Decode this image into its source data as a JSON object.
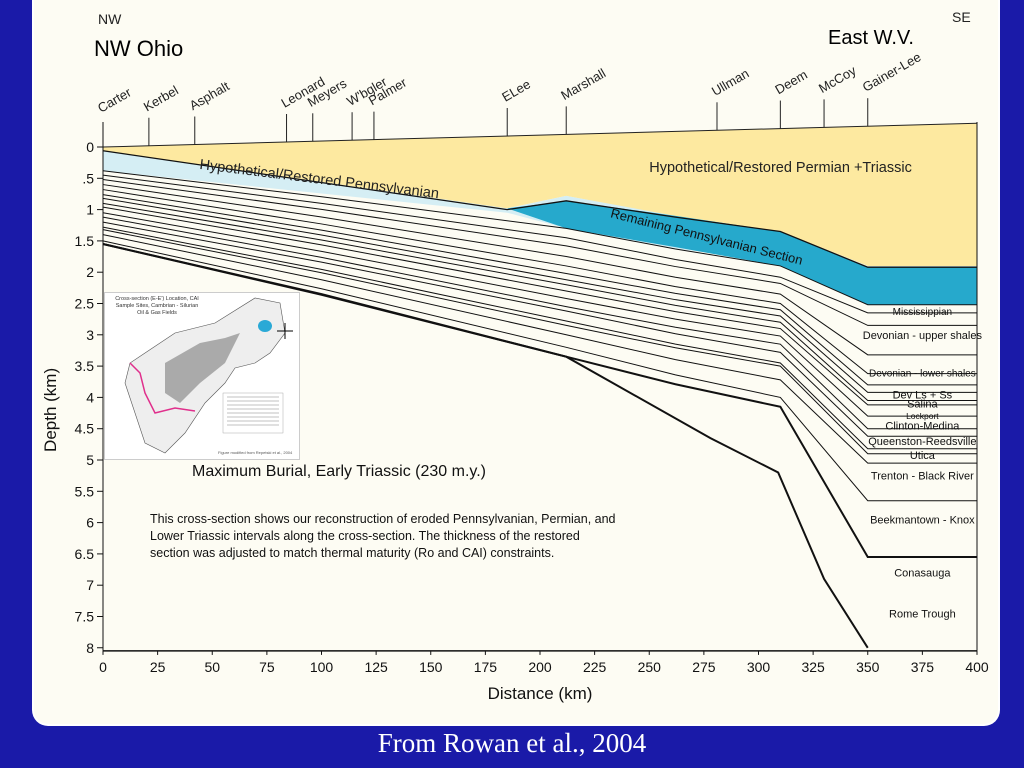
{
  "header": {
    "left_direction": "NW",
    "right_direction": "SE",
    "left_region": "NW Ohio",
    "right_region": "East W.V."
  },
  "wells": [
    {
      "name": "Carter",
      "km": 0
    },
    {
      "name": "Kerbel",
      "km": 21
    },
    {
      "name": "Asphalt",
      "km": 42
    },
    {
      "name": "Leonard",
      "km": 84
    },
    {
      "name": "Meyers",
      "km": 96
    },
    {
      "name": "W'bgler",
      "km": 114
    },
    {
      "name": "Palmer",
      "km": 124
    },
    {
      "name": "ELee",
      "km": 185
    },
    {
      "name": "Marshall",
      "km": 212
    },
    {
      "name": "Ullman",
      "km": 281
    },
    {
      "name": "Deem",
      "km": 310
    },
    {
      "name": "McCoy",
      "km": 330
    },
    {
      "name": "Gainer-Lee",
      "km": 350
    }
  ],
  "axes": {
    "x_label": "Distance (km)",
    "y_label": "Depth (km)",
    "x_ticks": [
      "0",
      "25",
      "50",
      "75",
      "100",
      "125",
      "150",
      "175",
      "200",
      "225",
      "250",
      "275",
      "300",
      "325",
      "350",
      "375",
      "400"
    ],
    "y_ticks": [
      "0",
      ".5",
      "1",
      "1.5",
      "2",
      "2.5",
      "3",
      "3.5",
      "4",
      "4.5",
      "5",
      "5.5",
      "6",
      "6.5",
      "7",
      "7.5",
      "8"
    ]
  },
  "overlays": {
    "permian_label": "Hypothetical/Restored Permian +Triassic",
    "penn_restored_label": "Hypothetical/Restored Pennsylvanian",
    "penn_remaining_label": "Remaining Pennsylvanian Section"
  },
  "units": [
    {
      "name": "Mississippian"
    },
    {
      "name": "Devonian - upper shales"
    },
    {
      "name": "Devonian - lower shales"
    },
    {
      "name": "Dev Ls + Ss"
    },
    {
      "name": "Salina"
    },
    {
      "name": "Lockport"
    },
    {
      "name": "Clinton-Medina"
    },
    {
      "name": "Queenston-Reedsville"
    },
    {
      "name": "Utica"
    },
    {
      "name": "Trenton - Black River"
    },
    {
      "name": "Beekmantown - Knox"
    },
    {
      "name": "Conasauga"
    },
    {
      "name": "Rome Trough"
    }
  ],
  "inset": {
    "title": "Cross-section (E-E') Location, CAI Sample Sites, Cambrian - Silurian Oil & Gas Fields",
    "note": "Figure modified from Repetski et al., 2004"
  },
  "burial_title": "Maximum Burial, Early Triassic (230 m.y.)",
  "description": "This cross-section shows our reconstruction of eroded Pennsylvanian, Permian, and Lower Triassic intervals along the cross-section.  The thickness of the restored section was adjusted to match thermal maturity (Ro and CAI) constraints.",
  "colors": {
    "background": "#1a1aa8",
    "panel": "#fdfcf3",
    "permian": "#fde9a0",
    "penn_restored": "#d5eef4",
    "penn_remaining": "#26a9cc"
  },
  "caption": "From Rowan et al., 2004"
}
